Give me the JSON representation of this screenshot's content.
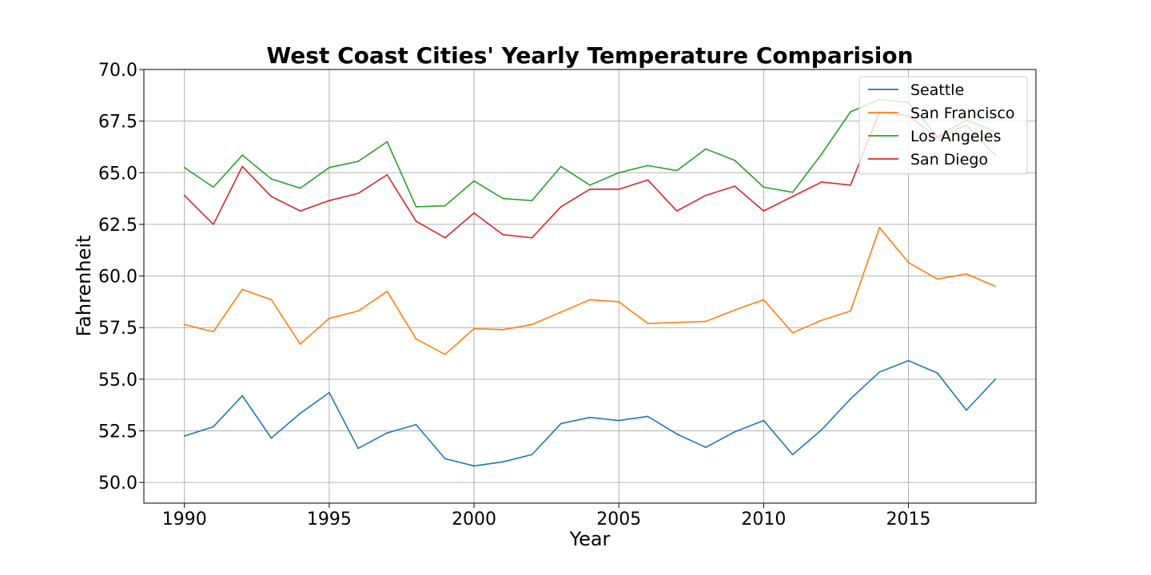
{
  "chart_data": {
    "type": "line",
    "title": "West Coast Cities' Yearly Temperature Comparision",
    "xlabel": "Year",
    "ylabel": "Fahrenheit",
    "xlim": [
      1988.6,
      2019.4
    ],
    "ylim": [
      49.0,
      70.0
    ],
    "xticks": [
      1990,
      1995,
      2000,
      2005,
      2010,
      2015
    ],
    "yticks": [
      50.0,
      52.5,
      55.0,
      57.5,
      60.0,
      62.5,
      65.0,
      67.5,
      70.0
    ],
    "ytick_labels": [
      "50.0",
      "52.5",
      "55.0",
      "57.5",
      "60.0",
      "62.5",
      "65.0",
      "67.5",
      "70.0"
    ],
    "grid": true,
    "legend_position": "upper right",
    "x": [
      1990,
      1991,
      1992,
      1993,
      1994,
      1995,
      1996,
      1997,
      1998,
      1999,
      2000,
      2001,
      2002,
      2003,
      2004,
      2005,
      2006,
      2007,
      2008,
      2009,
      2010,
      2011,
      2012,
      2013,
      2014,
      2015,
      2016,
      2017,
      2018
    ],
    "series": [
      {
        "name": "Seattle",
        "color": "#1f77b4",
        "values": [
          52.25,
          52.7,
          54.2,
          52.15,
          53.35,
          54.35,
          51.65,
          52.4,
          52.8,
          51.15,
          50.8,
          51.0,
          51.35,
          52.85,
          53.15,
          53.0,
          53.2,
          52.35,
          51.7,
          52.45,
          53.0,
          51.35,
          52.55,
          54.05,
          55.35,
          55.9,
          55.3,
          53.5,
          55.0
        ]
      },
      {
        "name": "San Francisco",
        "color": "#ff7f0e",
        "values": [
          57.65,
          57.3,
          59.35,
          58.85,
          56.7,
          57.95,
          58.3,
          59.25,
          56.95,
          56.2,
          57.45,
          57.4,
          57.65,
          58.25,
          58.85,
          58.75,
          57.7,
          57.75,
          57.8,
          58.35,
          58.85,
          57.25,
          57.85,
          58.3,
          62.35,
          60.65,
          59.85,
          60.1,
          59.5
        ]
      },
      {
        "name": "Los Angeles",
        "color": "#2ca02c",
        "values": [
          65.25,
          64.3,
          65.85,
          64.7,
          64.25,
          65.25,
          65.55,
          66.5,
          63.35,
          63.4,
          64.6,
          63.75,
          63.65,
          65.3,
          64.4,
          65.0,
          65.35,
          65.1,
          66.15,
          65.6,
          64.3,
          64.05,
          65.9,
          67.95,
          68.55,
          68.4,
          66.75,
          67.55,
          67.0
        ]
      },
      {
        "name": "San Diego",
        "color": "#d62728",
        "values": [
          63.9,
          62.5,
          65.3,
          63.85,
          63.15,
          63.65,
          64.0,
          64.9,
          62.65,
          61.85,
          63.05,
          62.0,
          61.85,
          63.35,
          64.2,
          64.2,
          64.65,
          63.15,
          63.9,
          64.35,
          63.15,
          63.85,
          64.55,
          64.4,
          67.95,
          67.75,
          66.7,
          67.3,
          65.85
        ]
      }
    ]
  }
}
